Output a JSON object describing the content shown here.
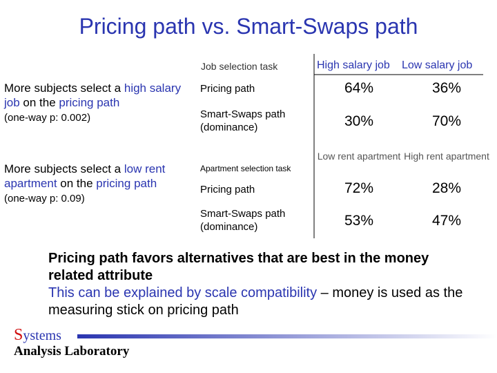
{
  "title": "Pricing path vs. Smart-Swaps path",
  "notes": [
    {
      "segments": [
        "More subjects select a ",
        "high salary job",
        " on the ",
        "pricing path"
      ],
      "stat": "(one-way p: 0.002)"
    },
    {
      "segments": [
        "More subjects select a ",
        "low rent apartment",
        " on the ",
        "pricing path"
      ],
      "stat": "(one-way p: 0.09)"
    }
  ],
  "tables": [
    {
      "header": [
        "Job selection task",
        "High salary job",
        "Low salary job"
      ],
      "rows": [
        [
          "Pricing path",
          "64%",
          "36%"
        ],
        [
          "Smart-Swaps path (dominance)",
          "30%",
          "70%"
        ]
      ]
    },
    {
      "header": [
        "Apartment selection task",
        "Low rent apartment",
        "High rent apartment"
      ],
      "rows": [
        [
          "Pricing path",
          "72%",
          "28%"
        ],
        [
          "Smart-Swaps path (dominance)",
          "53%",
          "47%"
        ]
      ]
    }
  ],
  "conclusion": {
    "bold": "Pricing path favors alternatives that are best in the money related attribute",
    "highlight": "This can be explained by scale compatibility",
    "rest": " – money is used as the measuring stick on pricing path"
  },
  "logo": {
    "initial": "S",
    "rest": "ystems",
    "subtitle": "Analysis Laboratory"
  }
}
